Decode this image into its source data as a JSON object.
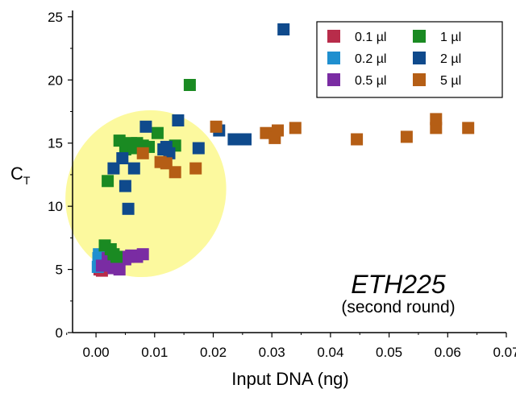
{
  "chart_data": {
    "type": "scatter",
    "xlabel": "Input DNA (ng)",
    "ylabel_main": "C",
    "ylabel_sub": "T",
    "xlim": [
      -0.004,
      0.07
    ],
    "ylim": [
      0,
      25.5
    ],
    "xticks": [
      0.0,
      0.01,
      0.02,
      0.03,
      0.04,
      0.05,
      0.06,
      0.07
    ],
    "xtick_labels": [
      "0.00",
      "0.01",
      "0.02",
      "0.03",
      "0.04",
      "0.05",
      "0.06",
      "0.07"
    ],
    "yticks": [
      0,
      5,
      10,
      15,
      20,
      25
    ],
    "ytick_labels": [
      "0",
      "5",
      "10",
      "15",
      "20",
      "25"
    ],
    "legend_position": "top-right",
    "annotation": {
      "main": "ETH225",
      "sub": "(second round)"
    },
    "highlight_ellipse": {
      "cx": 0.0085,
      "cy": 11.0,
      "rx": 0.0135,
      "ry": 6.7,
      "color": "#fcf99e"
    },
    "series": [
      {
        "name": "0.1 µl",
        "color": "#b82c4a",
        "points": [
          [
            0.0005,
            5.5
          ],
          [
            0.0006,
            5.0
          ],
          [
            0.001,
            4.9
          ],
          [
            0.0007,
            5.9
          ]
        ]
      },
      {
        "name": "0.2 µl",
        "color": "#1f8fcf",
        "points": [
          [
            0.0003,
            5.2
          ],
          [
            0.0004,
            5.9
          ],
          [
            0.0005,
            6.2
          ],
          [
            0.0008,
            5.6
          ]
        ]
      },
      {
        "name": "0.5 µl",
        "color": "#7a2ca3",
        "points": [
          [
            0.001,
            5.3
          ],
          [
            0.002,
            5.9
          ],
          [
            0.003,
            5.1
          ],
          [
            0.004,
            5.0
          ],
          [
            0.005,
            5.8
          ],
          [
            0.006,
            6.1
          ],
          [
            0.007,
            6.0
          ],
          [
            0.008,
            6.2
          ],
          [
            0.0025,
            5.5
          ],
          [
            0.0055,
            6.0
          ]
        ]
      },
      {
        "name": "1 µl",
        "color": "#1a8a22",
        "points": [
          [
            0.0015,
            6.9
          ],
          [
            0.0025,
            6.6
          ],
          [
            0.003,
            6.2
          ],
          [
            0.0035,
            6.0
          ],
          [
            0.002,
            12.0
          ],
          [
            0.004,
            15.2
          ],
          [
            0.005,
            14.5
          ],
          [
            0.006,
            15.0
          ],
          [
            0.0065,
            14.6
          ],
          [
            0.007,
            15.0
          ],
          [
            0.008,
            14.8
          ],
          [
            0.009,
            14.7
          ],
          [
            0.0105,
            15.8
          ],
          [
            0.0135,
            14.8
          ],
          [
            0.016,
            19.6
          ]
        ]
      },
      {
        "name": "2 µl",
        "color": "#0f4a8c",
        "points": [
          [
            0.003,
            13.0
          ],
          [
            0.0045,
            13.8
          ],
          [
            0.005,
            11.6
          ],
          [
            0.0055,
            9.8
          ],
          [
            0.0065,
            13.0
          ],
          [
            0.0085,
            16.3
          ],
          [
            0.0115,
            14.5
          ],
          [
            0.012,
            14.7
          ],
          [
            0.0125,
            14.2
          ],
          [
            0.014,
            16.8
          ],
          [
            0.0175,
            14.6
          ],
          [
            0.021,
            16.0
          ],
          [
            0.0235,
            15.3
          ],
          [
            0.0255,
            15.3
          ],
          [
            0.032,
            24.0
          ]
        ]
      },
      {
        "name": "5 µl",
        "color": "#b55e15",
        "points": [
          [
            0.008,
            14.2
          ],
          [
            0.011,
            13.5
          ],
          [
            0.012,
            13.4
          ],
          [
            0.0135,
            12.7
          ],
          [
            0.017,
            13.0
          ],
          [
            0.0205,
            16.3
          ],
          [
            0.029,
            15.8
          ],
          [
            0.0305,
            15.4
          ],
          [
            0.031,
            16.0
          ],
          [
            0.034,
            16.2
          ],
          [
            0.0445,
            15.3
          ],
          [
            0.053,
            15.5
          ],
          [
            0.058,
            16.2
          ],
          [
            0.058,
            16.9
          ],
          [
            0.0635,
            16.2
          ]
        ]
      }
    ]
  }
}
